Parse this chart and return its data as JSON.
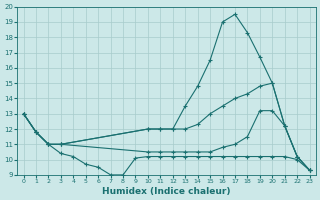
{
  "xlabel": "Humidex (Indice chaleur)",
  "background_color": "#cce8e8",
  "grid_color": "#a8cccc",
  "line_color": "#1a7070",
  "xlim": [
    -0.5,
    23.5
  ],
  "ylim": [
    9,
    20
  ],
  "xticks": [
    0,
    1,
    2,
    3,
    4,
    5,
    6,
    7,
    8,
    9,
    10,
    11,
    12,
    13,
    14,
    15,
    16,
    17,
    18,
    19,
    20,
    21,
    22,
    23
  ],
  "yticks": [
    9,
    10,
    11,
    12,
    13,
    14,
    15,
    16,
    17,
    18,
    19,
    20
  ],
  "line1_peak": {
    "x": [
      0,
      1,
      2,
      3,
      10,
      11,
      12,
      13,
      14,
      15,
      16,
      17,
      18,
      19,
      20,
      21,
      22,
      23
    ],
    "y": [
      13,
      11.8,
      11,
      11,
      12,
      12,
      12,
      13.5,
      14.8,
      16.5,
      19.0,
      19.5,
      18.3,
      16.7,
      15.0,
      12.2,
      10.2,
      9.3
    ]
  },
  "line2_mid": {
    "x": [
      0,
      1,
      2,
      3,
      10,
      11,
      12,
      13,
      14,
      15,
      16,
      17,
      18,
      19,
      20,
      21,
      22,
      23
    ],
    "y": [
      13,
      11.8,
      11,
      11,
      12,
      12,
      12,
      12,
      12.3,
      13.0,
      13.5,
      14.0,
      14.3,
      14.8,
      15.0,
      12.2,
      10.2,
      9.3
    ]
  },
  "line3_low_flat": {
    "x": [
      0,
      1,
      2,
      3,
      10,
      11,
      12,
      13,
      14,
      15,
      16,
      17,
      18,
      19,
      20,
      21,
      22,
      23
    ],
    "y": [
      13,
      11.8,
      11,
      11,
      10.5,
      10.5,
      10.5,
      10.5,
      10.5,
      10.5,
      10.8,
      11.0,
      11.5,
      13.2,
      13.2,
      12.2,
      10.2,
      9.3
    ]
  },
  "line4_dip": {
    "x": [
      0,
      1,
      2,
      3,
      4,
      5,
      6,
      7,
      8,
      9,
      10,
      11,
      12,
      13,
      14,
      15,
      16,
      17,
      18,
      19,
      20,
      21,
      22,
      23
    ],
    "y": [
      13,
      11.8,
      11,
      10.4,
      10.2,
      9.7,
      9.5,
      9.0,
      9.0,
      10.1,
      10.2,
      10.2,
      10.2,
      10.2,
      10.2,
      10.2,
      10.2,
      10.2,
      10.2,
      10.2,
      10.2,
      10.2,
      10.0,
      9.3
    ]
  }
}
